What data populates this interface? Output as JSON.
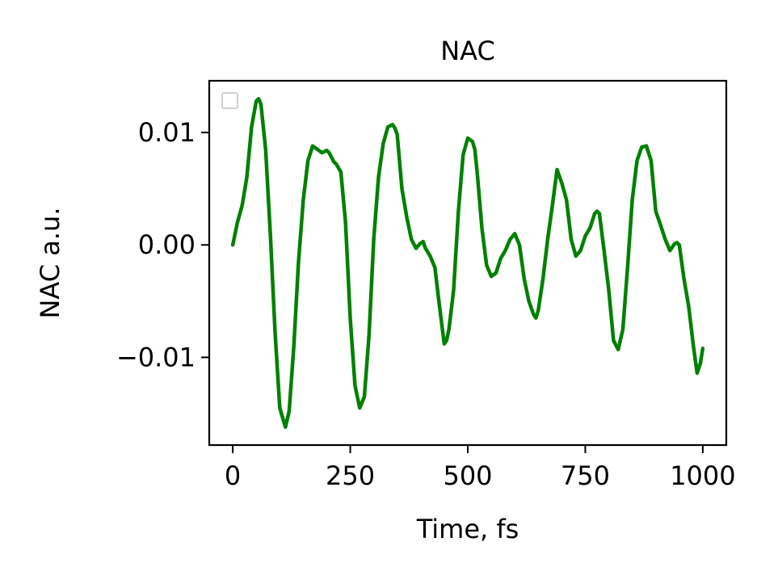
{
  "chart_data": {
    "type": "line",
    "title": "NAC",
    "xlabel": "Time, fs",
    "ylabel": "NAC a.u.",
    "xlim": [
      -50,
      1050
    ],
    "ylim": [
      -0.0178,
      0.0146
    ],
    "xticks": [
      0,
      250,
      500,
      750,
      1000
    ],
    "xtick_labels": [
      "0",
      "250",
      "500",
      "750",
      "1000"
    ],
    "yticks": [
      -0.01,
      0.0,
      0.01
    ],
    "ytick_labels": [
      "−0.01",
      "0.00",
      "0.01"
    ],
    "grid": false,
    "legend": {
      "placement": "top-left",
      "entries": []
    },
    "series": [
      {
        "color": "#008000",
        "x": [
          0,
          10,
          20,
          30,
          40,
          50,
          55,
          60,
          70,
          80,
          90,
          100,
          112,
          120,
          130,
          140,
          150,
          160,
          170,
          180,
          190,
          195,
          200,
          205,
          210,
          215,
          220,
          230,
          240,
          250,
          260,
          270,
          280,
          290,
          300,
          310,
          320,
          330,
          340,
          345,
          350,
          360,
          370,
          380,
          390,
          398,
          405,
          410,
          420,
          430,
          440,
          450,
          455,
          460,
          470,
          480,
          490,
          500,
          510,
          515,
          520,
          530,
          540,
          550,
          560,
          570,
          580,
          590,
          600,
          610,
          620,
          630,
          640,
          645,
          650,
          660,
          670,
          680,
          690,
          700,
          710,
          720,
          730,
          740,
          750,
          760,
          770,
          775,
          780,
          790,
          800,
          810,
          820,
          830,
          840,
          850,
          860,
          870,
          880,
          890,
          900,
          910,
          920,
          930,
          940,
          945,
          950,
          960,
          970,
          980,
          988,
          995,
          1000
        ],
        "y": [
          0.0,
          0.002,
          0.0035,
          0.006,
          0.0105,
          0.0128,
          0.013,
          0.0125,
          0.0085,
          0.001,
          -0.0078,
          -0.0145,
          -0.0162,
          -0.0148,
          -0.009,
          -0.0015,
          0.004,
          0.0075,
          0.0088,
          0.0085,
          0.0082,
          0.0083,
          0.0084,
          0.0082,
          0.0078,
          0.0074,
          0.0072,
          0.0065,
          0.002,
          -0.0065,
          -0.0125,
          -0.0145,
          -0.0135,
          -0.008,
          0.0005,
          0.006,
          0.009,
          0.0105,
          0.0107,
          0.0104,
          0.0098,
          0.005,
          0.0025,
          0.0005,
          -0.0003,
          0.0001,
          0.0003,
          -0.0003,
          -0.001,
          -0.002,
          -0.0055,
          -0.0088,
          -0.0085,
          -0.0075,
          -0.004,
          0.003,
          0.008,
          0.0095,
          0.0092,
          0.0085,
          0.0065,
          0.0015,
          -0.0018,
          -0.0028,
          -0.0025,
          -0.0012,
          -0.0005,
          0.0005,
          0.001,
          0.0,
          -0.003,
          -0.005,
          -0.0062,
          -0.0065,
          -0.0058,
          -0.003,
          0.0005,
          0.0035,
          0.0067,
          0.0055,
          0.004,
          0.0005,
          -0.001,
          -0.0005,
          0.0008,
          0.0015,
          0.0028,
          0.003,
          0.0028,
          -0.0005,
          -0.004,
          -0.0085,
          -0.0093,
          -0.0075,
          -0.002,
          0.004,
          0.0075,
          0.0087,
          0.0088,
          0.0075,
          0.003,
          0.0018,
          0.0005,
          -0.0005,
          0.0001,
          0.0002,
          0.0,
          -0.003,
          -0.0055,
          -0.009,
          -0.0114,
          -0.0105,
          -0.0092
        ]
      }
    ]
  }
}
